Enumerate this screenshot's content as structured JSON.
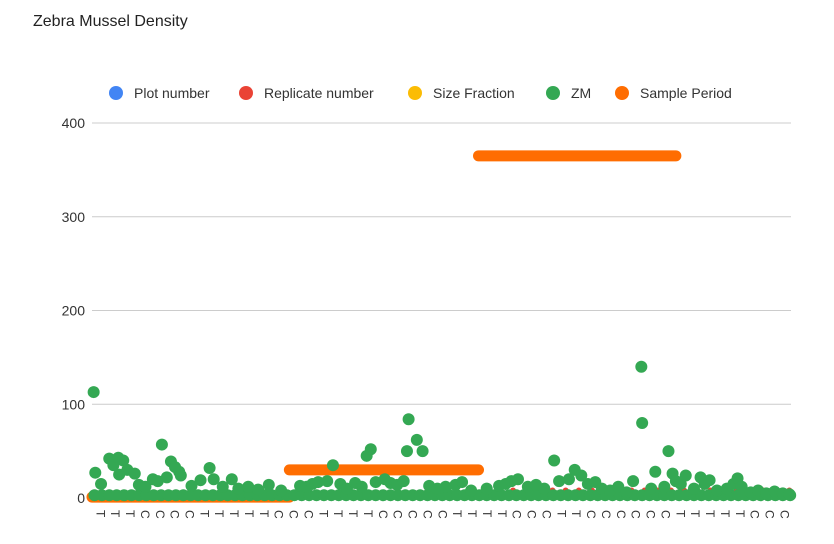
{
  "chart_data": {
    "type": "scatter",
    "title": "Zebra Mussel Density",
    "legend_position": "top",
    "grid": true,
    "ylim": [
      0,
      400
    ],
    "yticks": [
      0,
      100,
      200,
      300,
      400
    ],
    "xtick_labels": [
      "T",
      "T",
      "T",
      "C",
      "C",
      "C",
      "C",
      "T",
      "T",
      "T",
      "T",
      "T",
      "C",
      "C",
      "C",
      "T",
      "T",
      "T",
      "T",
      "C",
      "C",
      "C",
      "C",
      "C",
      "T",
      "T",
      "T",
      "T",
      "C",
      "C",
      "C",
      "T",
      "T",
      "C",
      "C",
      "C",
      "C",
      "C",
      "C",
      "T",
      "T",
      "T",
      "T",
      "T",
      "C",
      "C",
      "C"
    ],
    "series": [
      {
        "name": "Plot number",
        "color": "#4285f4",
        "values": []
      },
      {
        "name": "Replicate number",
        "color": "#ea4335",
        "values": []
      },
      {
        "name": "Size Fraction",
        "color": "#fbbc04",
        "values": []
      },
      {
        "name": "ZM",
        "color": "#34a853",
        "points": [
          [
            0.2,
            113
          ],
          [
            0.4,
            27
          ],
          [
            1.1,
            15
          ],
          [
            2.1,
            42
          ],
          [
            2.6,
            35
          ],
          [
            3.2,
            43
          ],
          [
            3.3,
            25
          ],
          [
            3.8,
            40
          ],
          [
            4.3,
            30
          ],
          [
            5.2,
            26
          ],
          [
            5.7,
            14
          ],
          [
            6.5,
            12
          ],
          [
            7.4,
            20
          ],
          [
            8.0,
            18
          ],
          [
            8.5,
            57
          ],
          [
            9.1,
            22
          ],
          [
            9.6,
            39
          ],
          [
            10.1,
            33
          ],
          [
            10.6,
            28
          ],
          [
            10.8,
            24
          ],
          [
            12.1,
            13
          ],
          [
            13.2,
            19
          ],
          [
            14.3,
            32
          ],
          [
            14.8,
            20
          ],
          [
            15.9,
            12
          ],
          [
            17.0,
            20
          ],
          [
            17.8,
            10
          ],
          [
            19.0,
            12
          ],
          [
            20.2,
            9
          ],
          [
            21.5,
            14
          ],
          [
            23.0,
            8
          ],
          [
            25.3,
            13
          ],
          [
            26.1,
            12
          ],
          [
            26.8,
            15
          ],
          [
            27.5,
            17
          ],
          [
            28.6,
            18
          ],
          [
            29.3,
            35
          ],
          [
            30.2,
            15
          ],
          [
            31.0,
            10
          ],
          [
            32.0,
            16
          ],
          [
            32.8,
            12
          ],
          [
            33.4,
            45
          ],
          [
            33.9,
            52
          ],
          [
            34.5,
            17
          ],
          [
            35.6,
            20
          ],
          [
            36.3,
            16
          ],
          [
            37.1,
            14
          ],
          [
            37.9,
            18
          ],
          [
            38.3,
            50
          ],
          [
            38.5,
            84
          ],
          [
            39.5,
            62
          ],
          [
            40.2,
            50
          ],
          [
            41.0,
            13
          ],
          [
            42.0,
            10
          ],
          [
            43.0,
            12
          ],
          [
            44.2,
            14
          ],
          [
            45.0,
            17
          ],
          [
            46.1,
            8
          ],
          [
            48.0,
            10
          ],
          [
            49.5,
            13
          ],
          [
            50.3,
            15
          ],
          [
            51.0,
            18
          ],
          [
            51.8,
            20
          ],
          [
            53.0,
            12
          ],
          [
            54.0,
            14
          ],
          [
            55.0,
            10
          ],
          [
            56.2,
            40
          ],
          [
            56.8,
            18
          ],
          [
            58.0,
            20
          ],
          [
            58.7,
            30
          ],
          [
            59.5,
            24
          ],
          [
            60.3,
            15
          ],
          [
            61.2,
            17
          ],
          [
            62.0,
            10
          ],
          [
            63.0,
            8
          ],
          [
            64.0,
            12
          ],
          [
            65.0,
            6
          ],
          [
            65.8,
            18
          ],
          [
            66.8,
            140
          ],
          [
            66.9,
            80
          ],
          [
            68.0,
            10
          ],
          [
            68.5,
            28
          ],
          [
            69.6,
            12
          ],
          [
            70.1,
            50
          ],
          [
            70.6,
            26
          ],
          [
            71.0,
            18
          ],
          [
            71.6,
            15
          ],
          [
            72.2,
            24
          ],
          [
            73.2,
            10
          ],
          [
            74.0,
            22
          ],
          [
            74.5,
            15
          ],
          [
            75.1,
            19
          ],
          [
            76.0,
            8
          ],
          [
            77.2,
            10
          ],
          [
            78.0,
            15
          ],
          [
            78.5,
            21
          ],
          [
            79.0,
            12
          ],
          [
            80.1,
            6
          ],
          [
            81.0,
            8
          ],
          [
            82.0,
            5
          ],
          [
            83.0,
            7
          ],
          [
            84.0,
            5
          ],
          [
            84.8,
            4
          ]
        ],
        "baseline": {
          "start": 0,
          "end": 85,
          "value": 3
        }
      },
      {
        "name": "Sample Period",
        "color": "#ff6d01",
        "segments": [
          {
            "start": 0,
            "end": 24,
            "value": 1
          },
          {
            "start": 24,
            "end": 47,
            "value": 30
          },
          {
            "start": 47,
            "end": 71,
            "value": 365
          }
        ]
      }
    ]
  }
}
